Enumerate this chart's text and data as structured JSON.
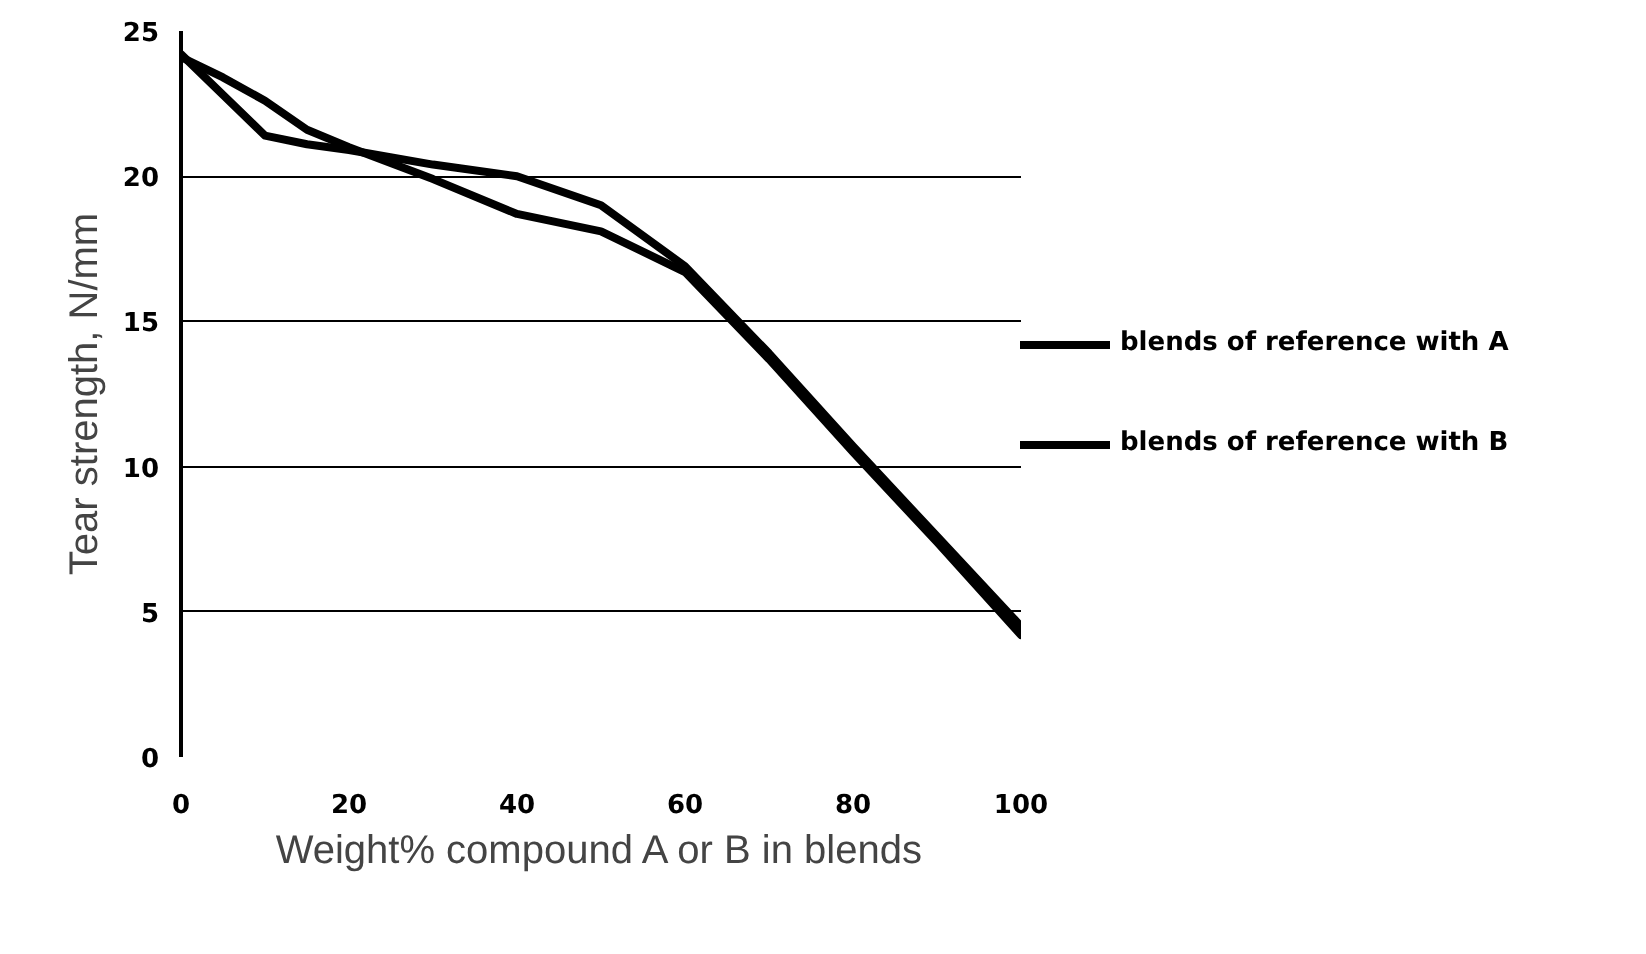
{
  "chart_data": {
    "type": "line",
    "xlabel": "Weight% compound A or B in blends",
    "ylabel": "Tear strength, N/mm",
    "xlim": [
      0,
      100
    ],
    "xticks": [
      0,
      20,
      40,
      60,
      80,
      100
    ],
    "ylim": [
      0,
      25
    ],
    "yticks": [
      0,
      5,
      10,
      15,
      20,
      25
    ],
    "grid": "y",
    "legend": "right",
    "marker": "none",
    "line_style": "solid",
    "x": [
      0,
      5,
      10,
      15,
      20,
      30,
      40,
      50,
      60,
      70,
      80,
      90,
      100
    ],
    "series": [
      {
        "name": "blends of reference with A",
        "color": "#000000",
        "values": [
          24.2,
          22.8,
          21.4,
          21.1,
          20.9,
          20.4,
          20.0,
          19.0,
          16.9,
          13.9,
          10.7,
          7.6,
          4.5
        ]
      },
      {
        "name": "blends of reference with B",
        "color": "#000000",
        "values": [
          24.1,
          23.4,
          22.6,
          21.6,
          21.0,
          19.9,
          18.7,
          18.1,
          16.7,
          13.7,
          10.5,
          7.4,
          4.2
        ]
      }
    ]
  }
}
